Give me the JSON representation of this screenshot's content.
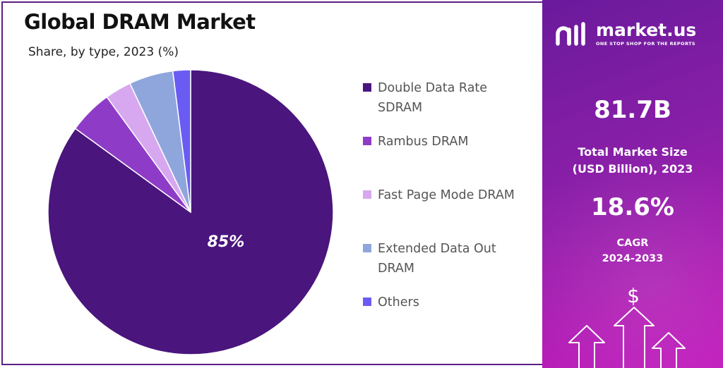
{
  "chart_data": {
    "type": "pie",
    "title": "Global DRAM Market",
    "subtitle": "Share, by type, 2023 (%)",
    "slices": [
      {
        "label": "Double Data Rate SDRAM",
        "value": 85,
        "color": "#4a157d",
        "data_label": "85%"
      },
      {
        "label": "Rambus DRAM",
        "value": 5,
        "color": "#8e3cc7",
        "data_label": ""
      },
      {
        "label": "Fast Page Mode DRAM",
        "value": 3,
        "color": "#d7a8ef",
        "data_label": ""
      },
      {
        "label": "Extended Data Out DRAM",
        "value": 5,
        "color": "#8fa6dc",
        "data_label": ""
      },
      {
        "label": "Others",
        "value": 2,
        "color": "#6a5cf2",
        "data_label": ""
      }
    ],
    "legend_position": "right"
  },
  "legend": {
    "items": [
      {
        "line1": "Double Data Rate",
        "line2": "SDRAM",
        "color": "#4a157d"
      },
      {
        "line1": "Rambus DRAM",
        "line2": "",
        "color": "#8e3cc7"
      },
      {
        "line1": "Fast Page Mode DRAM",
        "line2": "",
        "color": "#d7a8ef"
      },
      {
        "line1": "Extended Data Out",
        "line2": "DRAM",
        "color": "#8fa6dc"
      },
      {
        "line1": "Others",
        "line2": "",
        "color": "#6a5cf2"
      }
    ]
  },
  "panel": {
    "brand_name": "market.us",
    "brand_tagline": "ONE STOP SHOP FOR THE REPORTS",
    "market_size_value": "81.7B",
    "market_size_label_line1": "Total Market Size",
    "market_size_label_line2": "(USD Billion), 2023",
    "cagr_value": "18.6%",
    "cagr_label_line1": "CAGR",
    "cagr_label_line2": "2024-2033",
    "dollar_symbol": "$"
  }
}
